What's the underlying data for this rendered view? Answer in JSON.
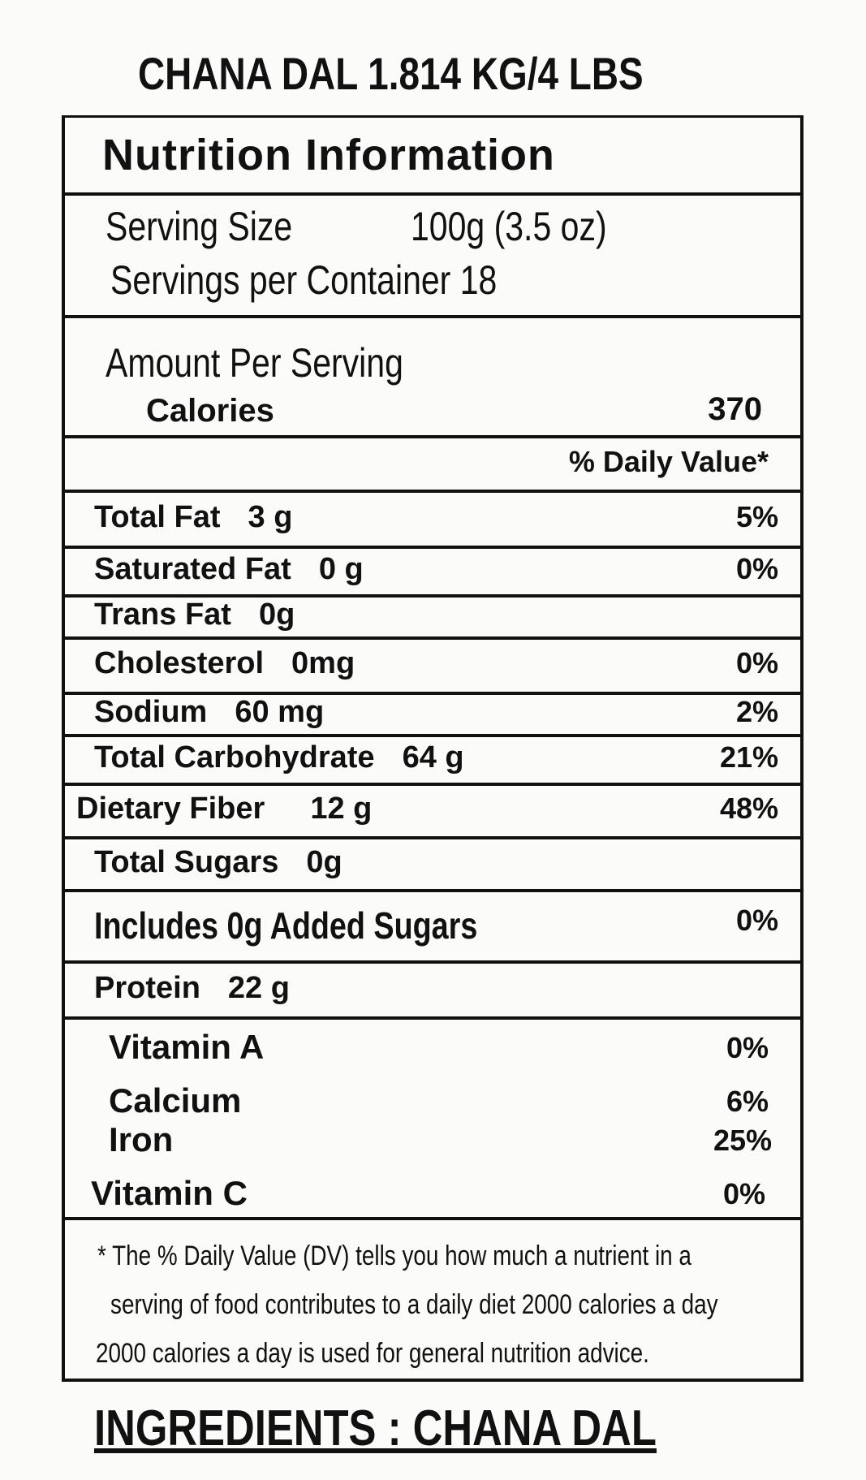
{
  "header": {
    "title": "CHANA DAL 1.814 KG/4 LBS"
  },
  "panel": {
    "title": "Nutrition Information",
    "serving_size_label": "Serving Size",
    "serving_size_value": "100g (3.5 oz)",
    "servings_per_container": "Servings per Container 18",
    "amount_per_serving": "Amount Per Serving",
    "calories_label": "Calories",
    "calories_value": "370",
    "daily_value_header": "% Daily Value*",
    "rows": [
      [
        "Total Fat",
        "3 g",
        "5%"
      ],
      [
        "Saturated Fat",
        "0 g",
        "0%"
      ],
      [
        "Trans Fat",
        "0g",
        ""
      ],
      [
        "Cholesterol",
        "0mg",
        "0%"
      ],
      [
        "Sodium",
        "60 mg",
        "2%"
      ],
      [
        "Total Carbohydrate",
        "64 g",
        "21%"
      ],
      [
        "Dietary Fiber",
        "12 g",
        "48%"
      ],
      [
        "Total Sugars",
        "0g",
        ""
      ],
      [
        "Includes 0g Added Sugars",
        "",
        "0%"
      ],
      [
        "Protein",
        "22 g",
        ""
      ]
    ],
    "vitamins": [
      [
        "Vitamin A",
        "0%"
      ],
      [
        "Calcium",
        "6%"
      ],
      [
        "Iron",
        "25%"
      ],
      [
        "Vitamin C",
        "0%"
      ]
    ],
    "footnote": [
      "* The % Daily Value (DV) tells you how much a nutrient in a",
      "serving of food contributes to a daily diet 2000 calories a day",
      "2000 calories a day is used for general nutrition advice."
    ]
  },
  "ingredients": "INGREDIENTS : CHANA DAL"
}
